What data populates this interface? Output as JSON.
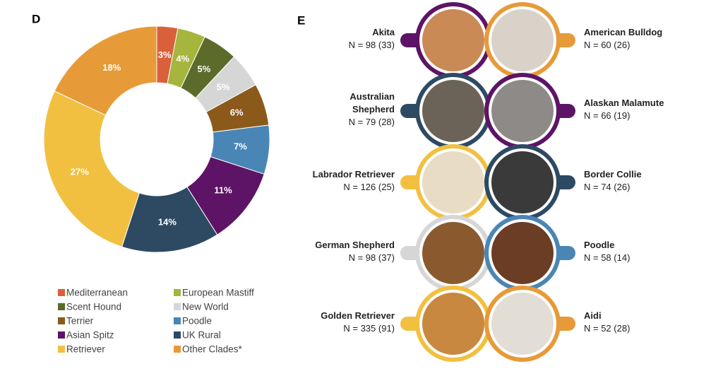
{
  "chart_data": {
    "type": "pie",
    "panel_label": "D",
    "categories": [
      "Mediterranean",
      "European Mastiff",
      "Scent Hound",
      "New World",
      "Terrier",
      "Poodle",
      "Asian Spitz",
      "UK Rural",
      "Retriever",
      "Other Clades*"
    ],
    "values": [
      3,
      4,
      5,
      5,
      6,
      7,
      11,
      14,
      27,
      18
    ],
    "value_labels": [
      "3%",
      "4%",
      "5%",
      "5%",
      "6%",
      "7%",
      "11%",
      "14%",
      "27%",
      "18%"
    ],
    "colors": [
      "#d9603b",
      "#a5b53e",
      "#5c6b2a",
      "#d6d6d6",
      "#8b5a1b",
      "#4a86b5",
      "#5e1466",
      "#2e4a63",
      "#f2c041",
      "#e79a38"
    ]
  },
  "breed_panel": {
    "label": "E",
    "breeds": [
      {
        "name": "Akita",
        "count": "N = 98 (33)"
      },
      {
        "name": "American Bulldog",
        "count": "N = 60 (26)"
      },
      {
        "name": "Australian Shepherd",
        "count": "N = 79 (28)"
      },
      {
        "name": "Alaskan Malamute",
        "count": "N = 66 (19)"
      },
      {
        "name": "Labrador Retriever",
        "count": "N = 126 (25)"
      },
      {
        "name": "Border Collie",
        "count": "N = 74 (26)"
      },
      {
        "name": "German Shepherd",
        "count": "N = 98 (37)"
      },
      {
        "name": "Poodle",
        "count": "N = 58 (14)"
      },
      {
        "name": "Golden Retriever",
        "count": "N = 335 (91)"
      },
      {
        "name": "Aidi",
        "count": "N = 52 (28)"
      }
    ]
  }
}
